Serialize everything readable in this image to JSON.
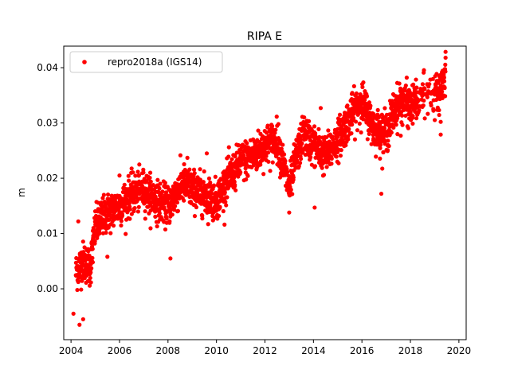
{
  "chart_data": {
    "type": "scatter",
    "title": "RIPA E",
    "xlabel": "",
    "ylabel": "m",
    "xlim": [
      2003.7,
      2020.3
    ],
    "ylim": [
      -0.0092,
      0.0439
    ],
    "xticks": [
      2004,
      2006,
      2008,
      2010,
      2012,
      2014,
      2016,
      2018,
      2020
    ],
    "xtick_labels": [
      "2004",
      "2006",
      "2008",
      "2010",
      "2012",
      "2014",
      "2016",
      "2018",
      "2020"
    ],
    "yticks": [
      0.0,
      0.01,
      0.02,
      0.03,
      0.04
    ],
    "ytick_labels": [
      "0.00",
      "0.01",
      "0.02",
      "0.03",
      "0.04"
    ],
    "grid": false,
    "legend_position": "top-left",
    "marker_color": "#ff0000",
    "series": [
      {
        "name": "repro2018a (IGS14)",
        "color": "#ff0000",
        "trend_x": [
          2004.2,
          2004.5,
          2004.8,
          2005.0,
          2005.3,
          2005.6,
          2006.0,
          2006.5,
          2007.0,
          2007.5,
          2008.0,
          2008.3,
          2008.6,
          2009.0,
          2009.5,
          2010.0,
          2010.5,
          2011.0,
          2011.5,
          2012.0,
          2012.5,
          2013.0,
          2013.3,
          2013.6,
          2014.0,
          2014.5,
          2015.0,
          2015.5,
          2016.0,
          2016.5,
          2017.0,
          2017.3,
          2017.6,
          2018.0,
          2018.5,
          2019.0,
          2019.3,
          2019.45
        ],
        "trend_y": [
          0.003,
          0.005,
          0.004,
          0.011,
          0.013,
          0.014,
          0.015,
          0.017,
          0.018,
          0.016,
          0.015,
          0.017,
          0.019,
          0.018,
          0.017,
          0.016,
          0.02,
          0.023,
          0.024,
          0.026,
          0.027,
          0.018,
          0.024,
          0.028,
          0.026,
          0.024,
          0.027,
          0.031,
          0.034,
          0.029,
          0.028,
          0.032,
          0.034,
          0.033,
          0.035,
          0.035,
          0.036,
          0.04
        ],
        "spread": 0.0025,
        "outliers": [
          {
            "x": 2004.1,
            "y": -0.0045
          },
          {
            "x": 2004.35,
            "y": -0.0065
          },
          {
            "x": 2004.5,
            "y": -0.0055
          },
          {
            "x": 2004.3,
            "y": 0.0122
          },
          {
            "x": 2004.9,
            "y": 0.0105
          },
          {
            "x": 2005.5,
            "y": 0.0058
          },
          {
            "x": 2006.0,
            "y": 0.0205
          },
          {
            "x": 2008.1,
            "y": 0.0055
          },
          {
            "x": 2008.8,
            "y": 0.0237
          },
          {
            "x": 2009.6,
            "y": 0.0245
          },
          {
            "x": 2013.0,
            "y": 0.0138
          },
          {
            "x": 2014.05,
            "y": 0.0147
          },
          {
            "x": 2014.3,
            "y": 0.0327
          },
          {
            "x": 2016.8,
            "y": 0.0172
          },
          {
            "x": 2017.6,
            "y": 0.0277
          },
          {
            "x": 2019.25,
            "y": 0.0302
          },
          {
            "x": 2019.25,
            "y": 0.0279
          },
          {
            "x": 2019.45,
            "y": 0.0418
          }
        ]
      }
    ]
  }
}
